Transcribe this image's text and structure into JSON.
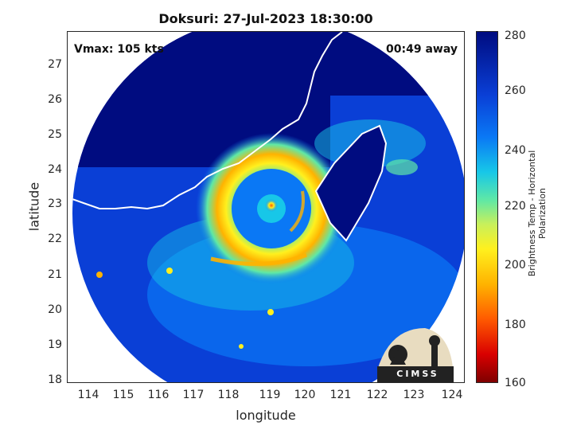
{
  "title": "Doksuri: 27-Jul-2023 18:30:00",
  "vmax_text": "Vmax: 105 kts",
  "away_text": "00:49 away",
  "xlabel": "longitude",
  "ylabel": "latitude",
  "x_ticks": [
    "114",
    "115",
    "116",
    "117",
    "118",
    "119",
    "120",
    "121",
    "122",
    "123",
    "124"
  ],
  "y_ticks": [
    "27",
    "26",
    "25",
    "24",
    "23",
    "22",
    "21",
    "20",
    "19",
    "18"
  ],
  "colorbar": {
    "label": "Brightness Temp - Horizontal Polarization",
    "ticks": [
      "280",
      "260",
      "240",
      "220",
      "200",
      "180",
      "160"
    ],
    "colors": [
      "#000c80",
      "#0a3fd6",
      "#0a78f5",
      "#17c7e8",
      "#5fe8a6",
      "#c9f05a",
      "#fff01e",
      "#ffb300",
      "#ff5a00",
      "#d90000",
      "#7f0000"
    ]
  },
  "logo": {
    "text": "CIMSS"
  },
  "map_extent": {
    "lon": [
      113.5,
      124.3
    ],
    "lat": [
      17.9,
      27.9
    ]
  }
}
